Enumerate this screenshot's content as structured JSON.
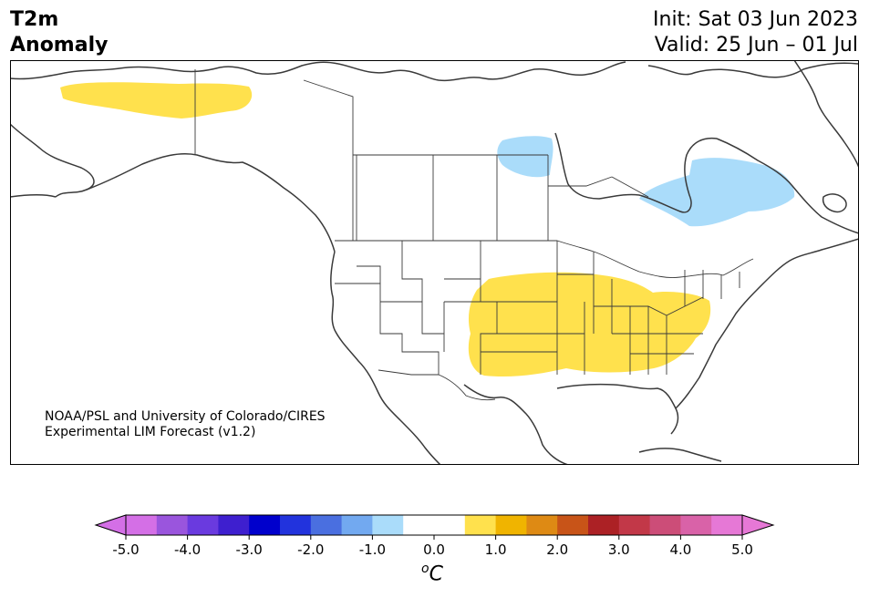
{
  "header": {
    "title_line1": "T2m",
    "title_line2": "Anomaly",
    "init": "Init: Sat 03 Jun 2023",
    "valid": "Valid: 25 Jun – 01 Jul"
  },
  "credit": {
    "line1": "NOAA/PSL and University of Colorado/CIRES",
    "line2": "Experimental LIM Forecast (v1.2)"
  },
  "colorbar": {
    "units_sup": "o",
    "units_main": "C",
    "tick_labels": [
      "-5.0",
      "-4.0",
      "-3.0",
      "-2.0",
      "-1.0",
      "0.0",
      "1.0",
      "2.0",
      "3.0",
      "4.0",
      "5.0"
    ],
    "bins": [
      "#d46fe6",
      "#9a55dd",
      "#6a3adf",
      "#3e1fcf",
      "#0000cc",
      "#2233dd",
      "#4a6fe0",
      "#72a9f0",
      "#aadcfa",
      "#ffffff",
      "#ffffff",
      "#ffe14d",
      "#f0b400",
      "#de8a14",
      "#c85418",
      "#ac2125",
      "#c23848",
      "#cc4d78",
      "#d962a8",
      "#e678d6"
    ],
    "under_color": "#d46fe6",
    "over_color": "#e678d6"
  },
  "map_data": {
    "anomaly_regions": [
      {
        "region": "Alaska",
        "color": "#ffe14d"
      },
      {
        "region": "Central/Eastern United States",
        "color": "#ffe14d"
      },
      {
        "region": "Manitoba / Hudson Bay",
        "color": "#aadcfa"
      },
      {
        "region": "Quebec",
        "color": "#aadcfa"
      }
    ]
  }
}
